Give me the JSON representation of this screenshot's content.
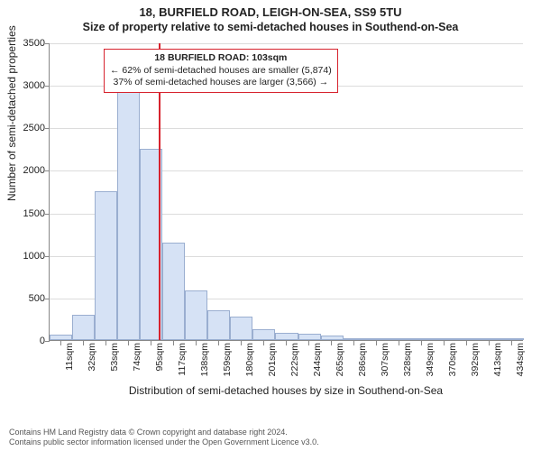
{
  "title": {
    "line1": "18, BURFIELD ROAD, LEIGH-ON-SEA, SS9 5TU",
    "line2": "Size of property relative to semi-detached houses in Southend-on-Sea"
  },
  "y_axis": {
    "label": "Number of semi-detached properties",
    "min": 0,
    "max": 3500,
    "step": 500,
    "ticks": [
      0,
      500,
      1000,
      1500,
      2000,
      2500,
      3000,
      3500
    ]
  },
  "x_axis": {
    "label": "Distribution of semi-detached houses by size in Southend-on-Sea",
    "categories": [
      "11sqm",
      "32sqm",
      "53sqm",
      "74sqm",
      "95sqm",
      "117sqm",
      "138sqm",
      "159sqm",
      "180sqm",
      "201sqm",
      "222sqm",
      "244sqm",
      "265sqm",
      "286sqm",
      "307sqm",
      "328sqm",
      "349sqm",
      "370sqm",
      "392sqm",
      "413sqm",
      "434sqm"
    ]
  },
  "histogram": {
    "values": [
      60,
      300,
      1750,
      3000,
      2250,
      1150,
      580,
      350,
      280,
      130,
      80,
      70,
      50,
      10,
      5,
      5,
      3,
      2,
      2,
      1,
      1
    ],
    "bar_fill": "#d6e2f5",
    "bar_stroke": "#9aaed0"
  },
  "reference": {
    "position_sqm": 103,
    "line_color": "#d7232e",
    "annotation": {
      "line1": "18 BURFIELD ROAD: 103sqm",
      "line2": "← 62% of semi-detached houses are smaller (5,874)",
      "line3": "37% of semi-detached houses are larger (3,566) →"
    }
  },
  "style": {
    "background": "#ffffff",
    "grid_color": "#dcdcdc",
    "axis_color": "#888888",
    "title_fontsize": 13,
    "label_fontsize": 12,
    "tick_fontsize": 11
  },
  "footer": {
    "line1": "Contains HM Land Registry data © Crown copyright and database right 2024.",
    "line2": "Contains public sector information licensed under the Open Government Licence v3.0."
  }
}
